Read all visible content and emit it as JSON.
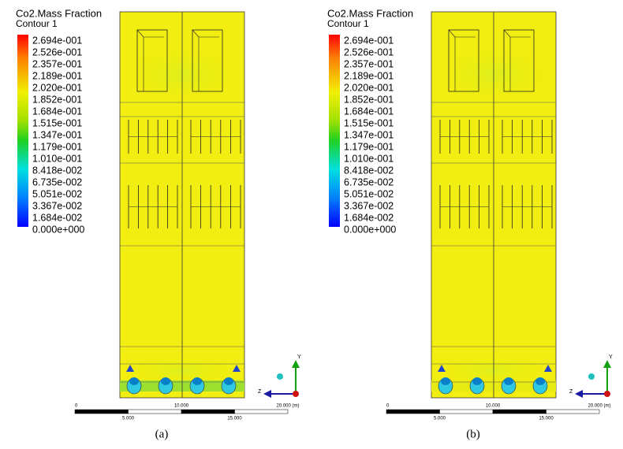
{
  "panels": [
    {
      "legend": {
        "title": "Co2.Mass Fraction",
        "subtitle": "Contour 1",
        "labels": [
          "2.694e-001",
          "2.526e-001",
          "2.357e-001",
          "2.189e-001",
          "2.020e-001",
          "1.852e-001",
          "1.684e-001",
          "1.515e-001",
          "1.347e-001",
          "1.179e-001",
          "1.010e-001",
          "8.418e-002",
          "6.735e-002",
          "5.051e-002",
          "3.367e-002",
          "1.684e-002",
          "0.000e+000"
        ]
      },
      "scale": {
        "top": [
          "0",
          "10.000",
          "20.000 (m)"
        ],
        "bottom": [
          "5.000",
          "15.000"
        ]
      },
      "axes": {
        "y": "Y",
        "z": "Z"
      },
      "caption": "(a)"
    },
    {
      "legend": {
        "title": "Co2.Mass Fraction",
        "subtitle": "Contour 1",
        "labels": [
          "2.694e-001",
          "2.526e-001",
          "2.357e-001",
          "2.189e-001",
          "2.020e-001",
          "1.852e-001",
          "1.684e-001",
          "1.515e-001",
          "1.347e-001",
          "1.179e-001",
          "1.010e-001",
          "8.418e-002",
          "6.735e-002",
          "5.051e-002",
          "3.367e-002",
          "1.684e-002",
          "0.000e+000"
        ]
      },
      "scale": {
        "top": [
          "0",
          "10.000",
          "20.000 (m)"
        ],
        "bottom": [
          "5.000",
          "15.000"
        ]
      },
      "axes": {
        "y": "Y",
        "z": "Z"
      },
      "caption": "(b)"
    }
  ]
}
